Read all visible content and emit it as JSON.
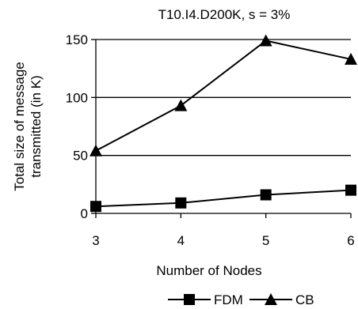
{
  "chart_data": {
    "type": "line",
    "title": "T10.I4.D200K, s = 3%",
    "xlabel": "Number of Nodes",
    "ylabel_lines": [
      "Total size of message",
      "transmitted (in K)"
    ],
    "x": [
      3,
      4,
      5,
      6
    ],
    "x_ticks": [
      "3",
      "4",
      "5",
      "6"
    ],
    "y_ticks": [
      "0",
      "50",
      "100",
      "150"
    ],
    "y_tick_values": [
      0,
      50,
      100,
      150
    ],
    "ylim": [
      0,
      150
    ],
    "grid": "horizontal",
    "legend_position": "bottom-center",
    "series": [
      {
        "name": "FDM",
        "marker": "square",
        "values": [
          6,
          9,
          16,
          20
        ]
      },
      {
        "name": "CB",
        "marker": "triangle",
        "values": [
          54,
          93,
          149,
          133
        ]
      }
    ]
  }
}
